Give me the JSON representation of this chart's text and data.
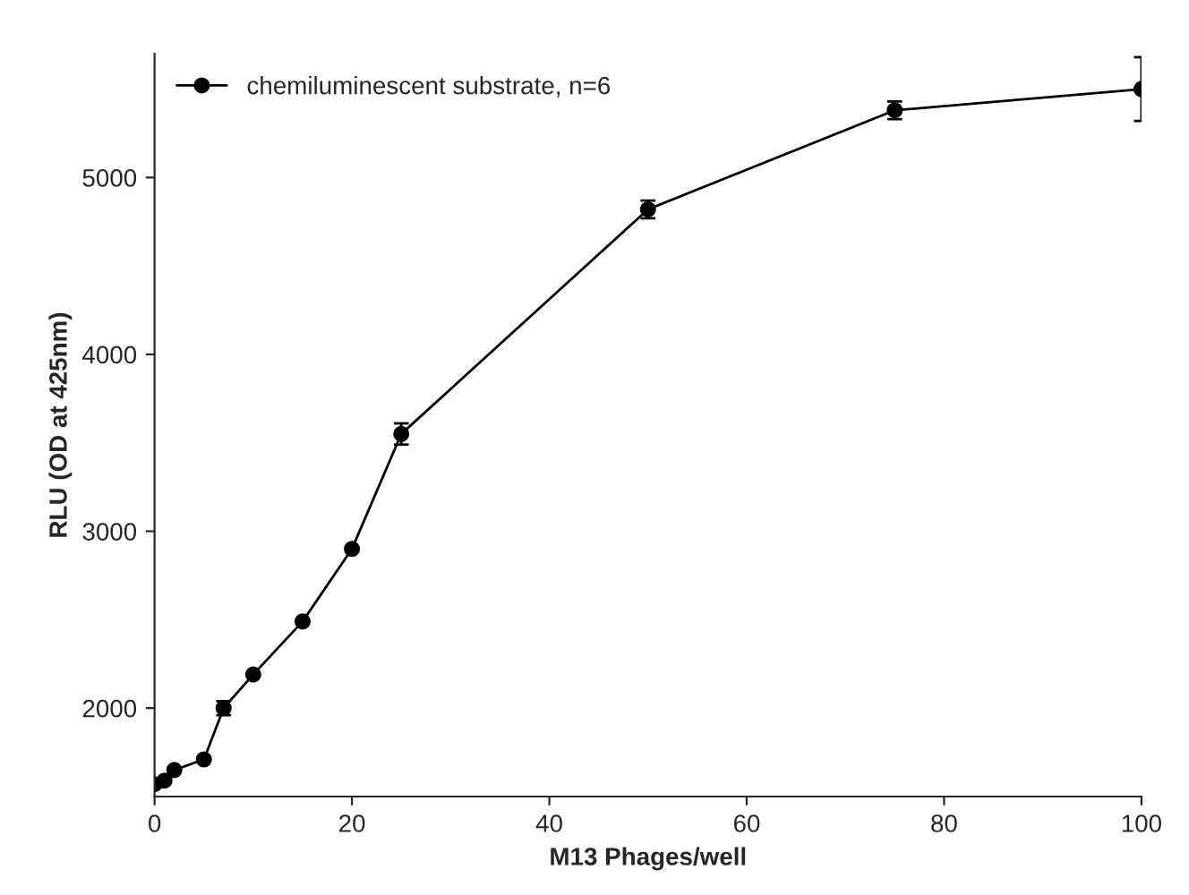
{
  "chart_data": {
    "type": "line",
    "xlabel": "M13 Phages/well",
    "ylabel": "RLU (OD at 425nm)",
    "xlim": [
      0,
      100
    ],
    "xticks": [
      0,
      20,
      40,
      60,
      80,
      100
    ],
    "ylim": [
      1500,
      5700
    ],
    "yticks": [
      2000,
      3000,
      4000,
      5000
    ],
    "x": [
      0,
      1,
      2,
      5,
      7,
      10,
      15,
      20,
      25,
      50,
      75,
      100
    ],
    "series": [
      {
        "name": "chemiluminescent substrate, n=6",
        "color": "#000000",
        "values": [
          1570,
          1590,
          1650,
          1710,
          2000,
          2190,
          2490,
          2900,
          3550,
          4820,
          5380,
          5500
        ],
        "errors": [
          null,
          null,
          null,
          null,
          40,
          null,
          null,
          null,
          60,
          50,
          50,
          180
        ]
      }
    ],
    "marker": "circle",
    "line_style": "solid",
    "legend": "top left",
    "grid": false
  }
}
